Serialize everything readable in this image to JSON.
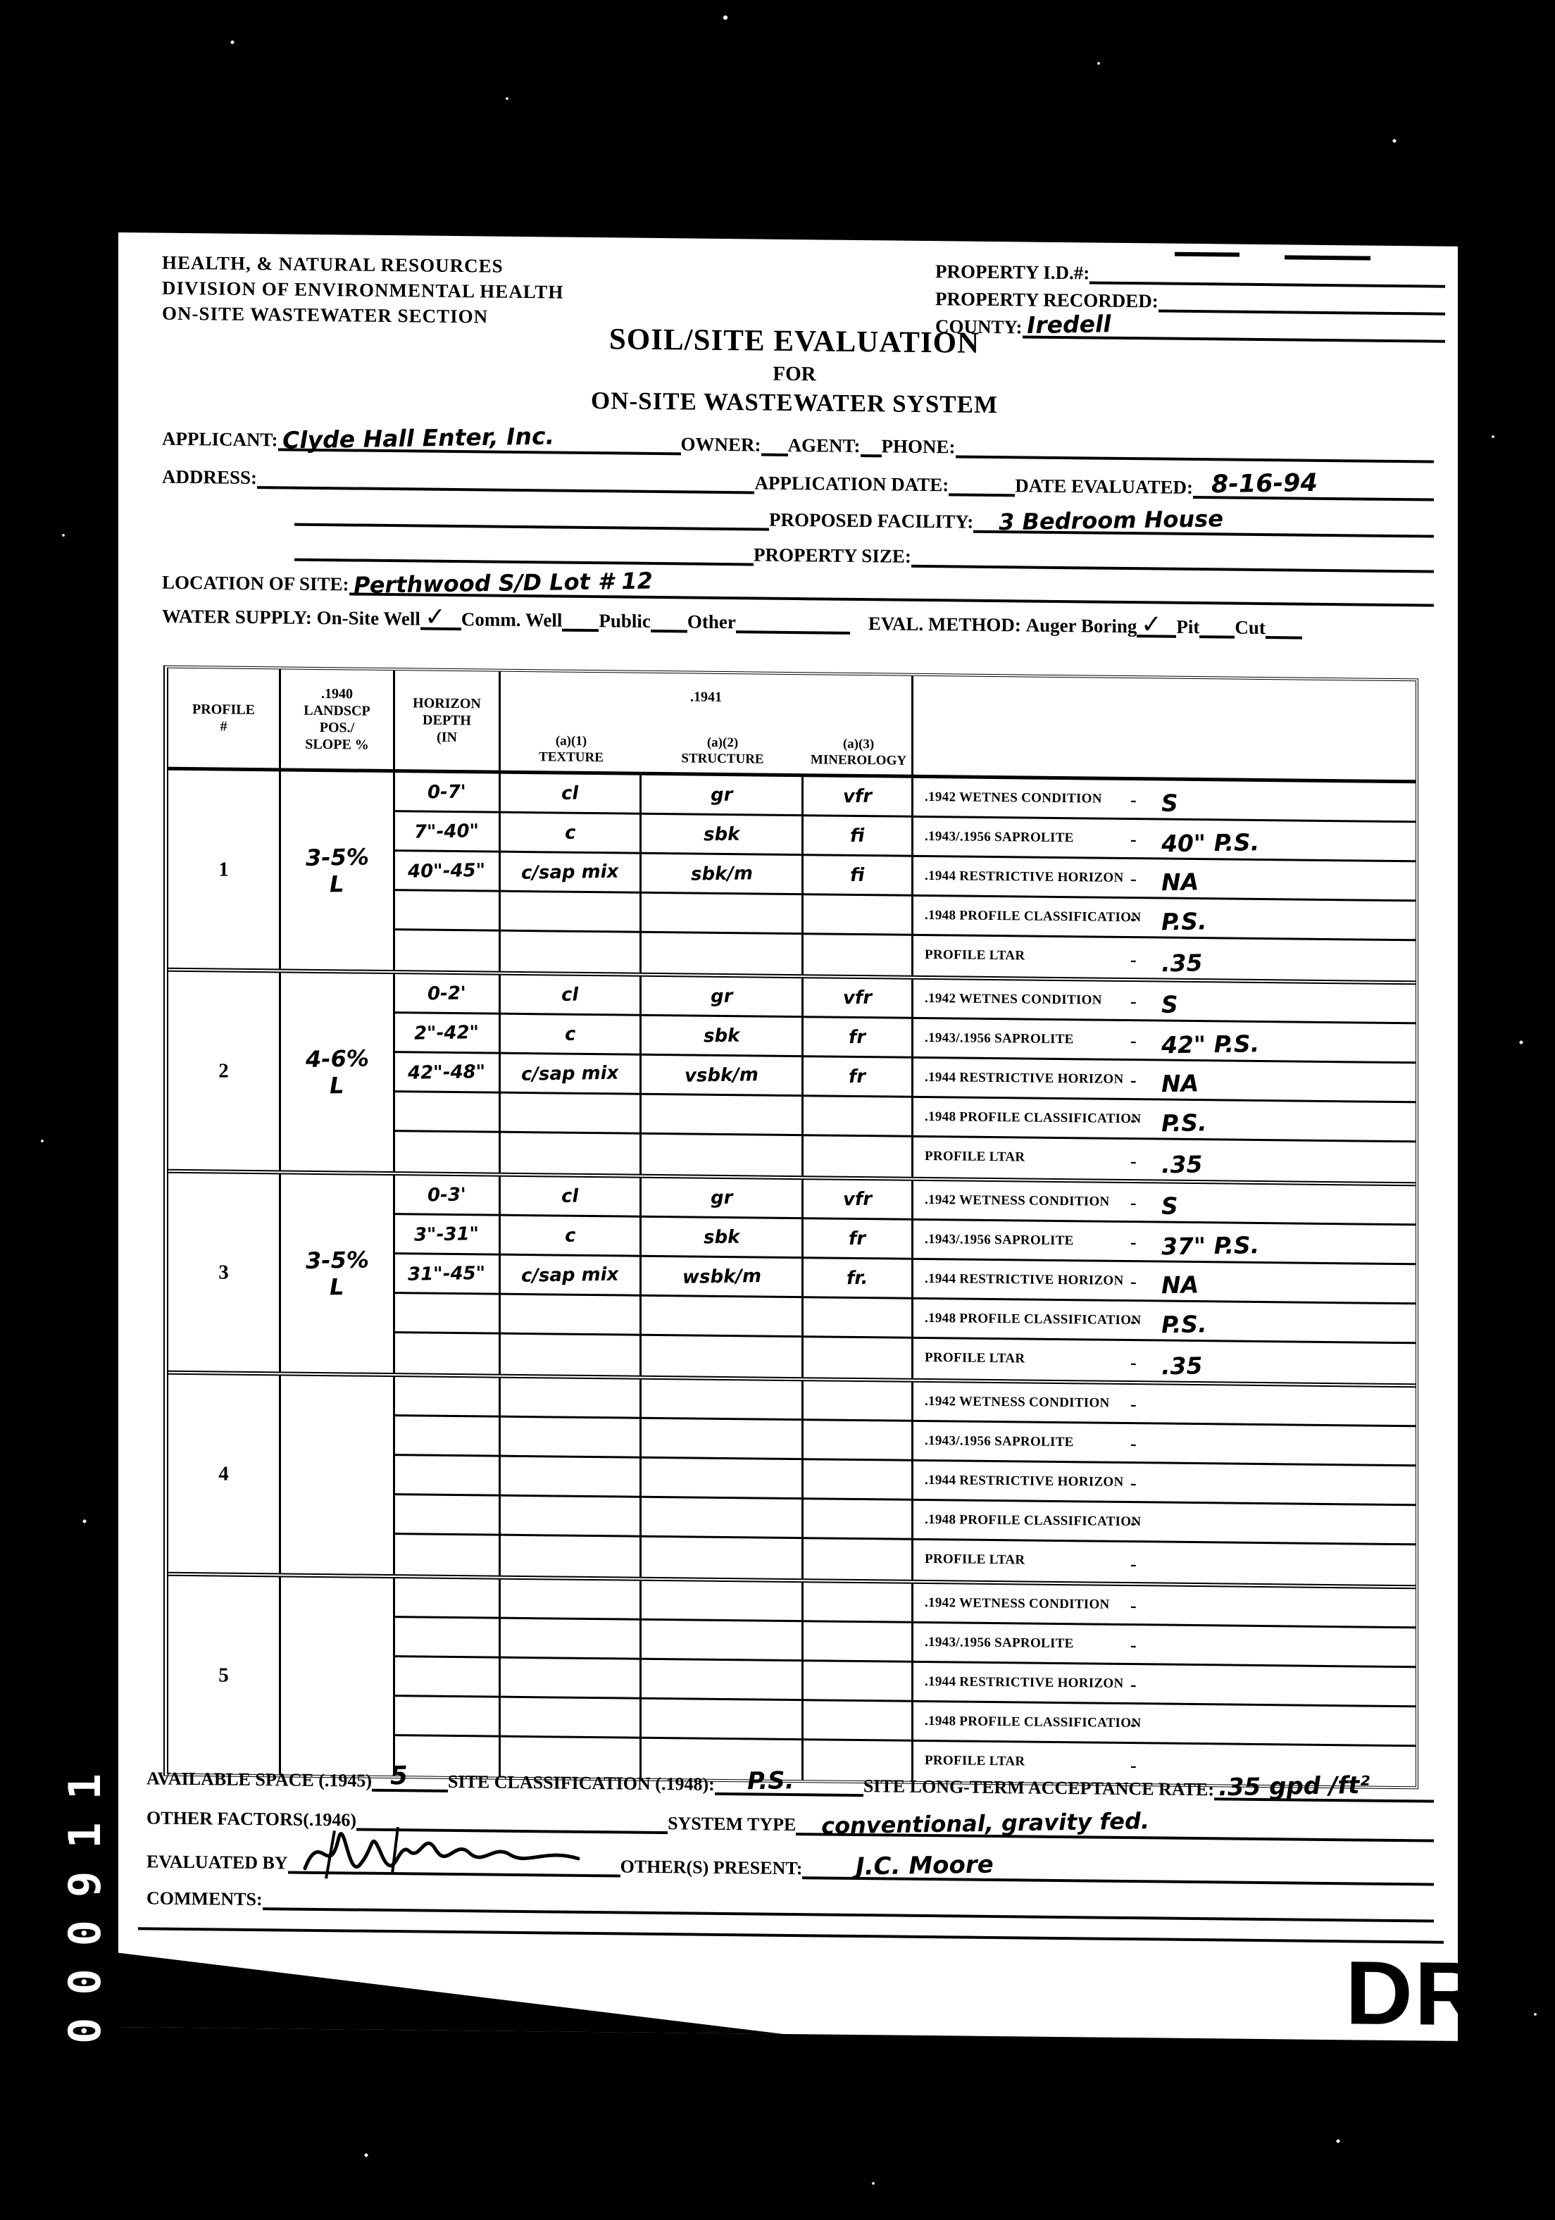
{
  "page": {
    "side_label": "000911",
    "stamp": "DRAFT"
  },
  "agency": {
    "line1": "HEALTH, & NATURAL RESOURCES",
    "line2": "DIVISION OF ENVIRONMENTAL HEALTH",
    "line3": "ON-SITE WASTEWATER SECTION"
  },
  "property": {
    "id_label": "PROPERTY I.D.#:",
    "recorded_label": "PROPERTY RECORDED:",
    "county_label": "COUNTY:",
    "county_value": "Iredell"
  },
  "title": {
    "line1": "SOIL/SITE EVALUATION",
    "line2": "FOR",
    "line3": "ON-SITE WASTEWATER SYSTEM"
  },
  "fields": {
    "applicant_label": "APPLICANT:",
    "applicant_value": "Clyde Hall Enter, Inc.",
    "owner_label": "OWNER:",
    "agent_label": "AGENT:",
    "phone_label": "PHONE:",
    "address_label": "ADDRESS:",
    "application_date_label": "APPLICATION DATE:",
    "date_evaluated_label": "DATE EVALUATED:",
    "date_evaluated_value": "8-16-94",
    "proposed_facility_label": "PROPOSED FACILITY:",
    "proposed_facility_value": "3 Bedroom House",
    "property_size_label": "PROPERTY SIZE:",
    "location_label": "LOCATION OF SITE:",
    "location_value": "Perthwood  S/D  Lot # 12",
    "water_supply_label": "WATER SUPPLY:",
    "onsite_well_label": "On-Site Well",
    "onsite_well_check": "✓",
    "comm_well_label": "Comm. Well",
    "public_label": "Public",
    "other_label": "Other",
    "eval_method_label": "EVAL. METHOD:",
    "auger_label": "Auger Boring",
    "auger_check": "✓",
    "pit_label": "Pit",
    "cut_label": "Cut"
  },
  "table": {
    "dash": "-",
    "headers": {
      "profile": "PROFILE\n#",
      "landscape": ".1940\nLANDSCP\nPOS./\nSLOPE %",
      "horizon": "HORIZON\nDEPTH\n(IN",
      "s1941": ".1941",
      "texture": "(a)(1)\nTEXTURE",
      "structure": "(a)(2)\nSTRUCTURE",
      "mineralogy": "(a)(3)\nMINEROLOGY"
    },
    "profiles": [
      {
        "num": "1",
        "landscape": "3-5%",
        "landscape2": "L",
        "horizons": [
          [
            "0-7'",
            "cl",
            "gr",
            "vfr"
          ],
          [
            "7\"-40\"",
            "c",
            "sbk",
            "fi"
          ],
          [
            "40\"-45\"",
            "c/sap mix",
            "sbk/m",
            "fi"
          ],
          [
            "",
            "",
            "",
            ""
          ],
          [
            "",
            "",
            "",
            ""
          ]
        ],
        "rows": [
          {
            "label": ".1942 WETNES CONDITION",
            "value": "S"
          },
          {
            "label": ".1943/.1956 SAPROLITE",
            "value": "40\" P.S."
          },
          {
            "label": ".1944 RESTRICTIVE HORIZON",
            "value": "NA"
          },
          {
            "label": ".1948 PROFILE CLASSIFICATION",
            "value": "P.S."
          },
          {
            "label": "PROFILE LTAR",
            "value": ".35"
          }
        ]
      },
      {
        "num": "2",
        "landscape": "4-6%",
        "landscape2": "L",
        "horizons": [
          [
            "0-2'",
            "cl",
            "gr",
            "vfr"
          ],
          [
            "2\"-42\"",
            "c",
            "sbk",
            "fr"
          ],
          [
            "42\"-48\"",
            "c/sap mix",
            "vsbk/m",
            "fr"
          ],
          [
            "",
            "",
            "",
            ""
          ],
          [
            "",
            "",
            "",
            ""
          ]
        ],
        "rows": [
          {
            "label": ".1942 WETNES CONDITION",
            "value": "S"
          },
          {
            "label": ".1943/.1956 SAPROLITE",
            "value": "42\" P.S."
          },
          {
            "label": ".1944 RESTRICTIVE HORIZON",
            "value": "NA"
          },
          {
            "label": ".1948 PROFILE CLASSIFICATION",
            "value": "P.S."
          },
          {
            "label": "PROFILE LTAR",
            "value": ".35"
          }
        ]
      },
      {
        "num": "3",
        "landscape": "3-5%",
        "landscape2": "L",
        "horizons": [
          [
            "0-3'",
            "cl",
            "gr",
            "vfr"
          ],
          [
            "3\"-31\"",
            "c",
            "sbk",
            "fr"
          ],
          [
            "31\"-45\"",
            "c/sap mix",
            "wsbk/m",
            "fr."
          ],
          [
            "",
            "",
            "",
            ""
          ],
          [
            "",
            "",
            "",
            ""
          ]
        ],
        "rows": [
          {
            "label": ".1942 WETNESS CONDITION",
            "value": "S"
          },
          {
            "label": ".1943/.1956 SAPROLITE",
            "value": "37\" P.S."
          },
          {
            "label": ".1944 RESTRICTIVE HORIZON",
            "value": "NA"
          },
          {
            "label": ".1948 PROFILE CLASSIFICATION",
            "value": "P.S."
          },
          {
            "label": "PROFILE LTAR",
            "value": ".35"
          }
        ]
      },
      {
        "num": "4",
        "landscape": "",
        "landscape2": "",
        "horizons": [
          [
            "",
            "",
            "",
            ""
          ],
          [
            "",
            "",
            "",
            ""
          ],
          [
            "",
            "",
            "",
            ""
          ],
          [
            "",
            "",
            "",
            ""
          ],
          [
            "",
            "",
            "",
            ""
          ]
        ],
        "rows": [
          {
            "label": ".1942 WETNESS CONDITION",
            "value": ""
          },
          {
            "label": ".1943/.1956 SAPROLITE",
            "value": ""
          },
          {
            "label": ".1944 RESTRICTIVE HORIZON",
            "value": ""
          },
          {
            "label": ".1948 PROFILE CLASSIFICATION",
            "value": ""
          },
          {
            "label": "PROFILE LTAR",
            "value": ""
          }
        ]
      },
      {
        "num": "5",
        "landscape": "",
        "landscape2": "",
        "horizons": [
          [
            "",
            "",
            "",
            ""
          ],
          [
            "",
            "",
            "",
            ""
          ],
          [
            "",
            "",
            "",
            ""
          ],
          [
            "",
            "",
            "",
            ""
          ],
          [
            "",
            "",
            "",
            ""
          ]
        ],
        "rows": [
          {
            "label": ".1942 WETNESS CONDITION",
            "value": ""
          },
          {
            "label": ".1943/.1956 SAPROLITE",
            "value": ""
          },
          {
            "label": ".1944 RESTRICTIVE HORIZON",
            "value": ""
          },
          {
            "label": ".1948 PROFILE CLASSIFICATION",
            "value": ""
          },
          {
            "label": "PROFILE LTAR",
            "value": ""
          }
        ]
      }
    ]
  },
  "footer": {
    "available_space_label": "AVAILABLE SPACE (.1945)",
    "available_space_value": "5",
    "site_class_label": "SITE CLASSIFICATION (.1948):",
    "site_class_value": "P.S.",
    "ltar_label": "SITE LONG-TERM ACCEPTANCE RATE:",
    "ltar_value": ".35 gpd /ft²",
    "other_factors_label": "OTHER FACTORS(.1946)",
    "system_type_label": "SYSTEM TYPE",
    "system_type_value": "conventional, gravity fed.",
    "evaluated_by_label": "EVALUATED BY",
    "others_present_label": "OTHER(S) PRESENT:",
    "others_present_value": "J.C.  Moore",
    "comments_label": "COMMENTS:"
  }
}
